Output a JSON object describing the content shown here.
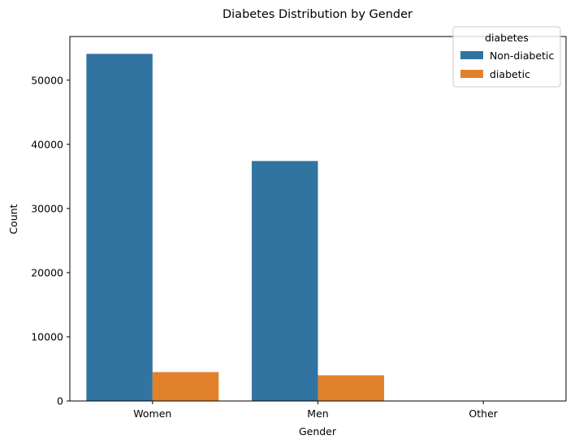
{
  "chart_data": {
    "type": "bar",
    "title": "Diabetes Distribution by Gender",
    "xlabel": "Gender",
    "ylabel": "Count",
    "categories": [
      "Women",
      "Men",
      "Other"
    ],
    "series": [
      {
        "name": "Non-diabetic",
        "color": "#3274a1",
        "values": [
          54100,
          37400,
          18
        ]
      },
      {
        "name": "diabetic",
        "color": "#e1812c",
        "values": [
          4500,
          4000,
          0
        ]
      }
    ],
    "ylim": [
      0,
      56800
    ],
    "yticks": [
      0,
      10000,
      20000,
      30000,
      40000,
      50000
    ],
    "grid": false,
    "legend": {
      "title": "diabetes",
      "placement": "top-right"
    }
  }
}
